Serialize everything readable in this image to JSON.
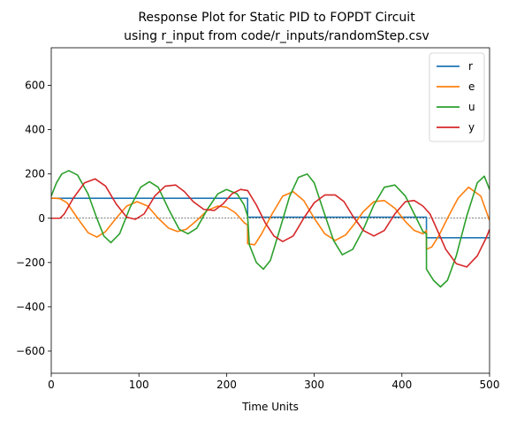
{
  "chart_data": {
    "type": "line",
    "title": "Response Plot for Static PID to FOPDT Circuit\nusing r_input from code/r_inputs/randomStep.csv",
    "xlabel": "Time Units",
    "ylabel": "",
    "xlim": [
      0,
      500
    ],
    "ylim": [
      -700,
      770
    ],
    "xticks": [
      0,
      100,
      200,
      300,
      400,
      500
    ],
    "yticks": [
      -600,
      -400,
      -200,
      0,
      200,
      400,
      600
    ],
    "zero_line": true,
    "grid": false,
    "legend_position": "top-right",
    "series": [
      {
        "name": "r",
        "color": "#1f77b4",
        "x": [
          0,
          224,
          224,
          428,
          428,
          500
        ],
        "y": [
          90,
          90,
          5,
          5,
          -88,
          -88
        ]
      },
      {
        "name": "e",
        "color": "#ff7f0e",
        "x": [
          0,
          5,
          10,
          18,
          30,
          42,
          52,
          62,
          74,
          86,
          98,
          110,
          122,
          134,
          144,
          154,
          166,
          178,
          190,
          200,
          210,
          220,
          224,
          224,
          232,
          240,
          252,
          264,
          276,
          288,
          300,
          312,
          324,
          336,
          346,
          356,
          368,
          380,
          392,
          404,
          414,
          424,
          428,
          428,
          434,
          442,
          452,
          464,
          476,
          490,
          500
        ],
        "y": [
          90,
          90,
          88,
          70,
          0,
          -65,
          -85,
          -60,
          0,
          55,
          75,
          55,
          0,
          -45,
          -60,
          -50,
          -10,
          35,
          55,
          50,
          25,
          -20,
          -30,
          -115,
          -120,
          -70,
          20,
          100,
          120,
          80,
          0,
          -70,
          -100,
          -75,
          -25,
          30,
          75,
          80,
          45,
          -15,
          -55,
          -70,
          -55,
          -140,
          -130,
          -80,
          0,
          90,
          140,
          100,
          -10
        ]
      },
      {
        "name": "u",
        "color": "#2ca02c",
        "x": [
          0,
          6,
          12,
          20,
          30,
          42,
          52,
          60,
          68,
          78,
          90,
          102,
          112,
          122,
          134,
          146,
          156,
          166,
          178,
          190,
          200,
          212,
          220,
          224,
          226,
          234,
          242,
          250,
          260,
          272,
          282,
          292,
          300,
          310,
          322,
          332,
          344,
          356,
          368,
          380,
          392,
          404,
          414,
          424,
          428,
          428,
          436,
          444,
          452,
          462,
          474,
          486,
          494,
          500
        ],
        "y": [
          100,
          160,
          200,
          215,
          195,
          110,
          0,
          -80,
          -110,
          -70,
          50,
          140,
          165,
          140,
          40,
          -50,
          -70,
          -45,
          40,
          110,
          130,
          110,
          60,
          10,
          -120,
          -200,
          -230,
          -190,
          -60,
          100,
          185,
          200,
          160,
          40,
          -100,
          -165,
          -140,
          -50,
          60,
          140,
          150,
          100,
          20,
          -60,
          -70,
          -230,
          -280,
          -310,
          -280,
          -170,
          10,
          160,
          190,
          130
        ]
      },
      {
        "name": "y",
        "color": "#d62728",
        "x": [
          0,
          10,
          15,
          25,
          38,
          50,
          62,
          74,
          86,
          96,
          106,
          118,
          130,
          142,
          152,
          162,
          174,
          186,
          196,
          206,
          216,
          224,
          234,
          244,
          254,
          264,
          276,
          288,
          300,
          312,
          324,
          334,
          344,
          356,
          368,
          380,
          392,
          404,
          414,
          424,
          432,
          440,
          450,
          462,
          474,
          486,
          496,
          500
        ],
        "y": [
          0,
          0,
          20,
          90,
          160,
          178,
          145,
          65,
          5,
          -5,
          20,
          100,
          145,
          150,
          120,
          75,
          40,
          35,
          65,
          110,
          130,
          125,
          60,
          -20,
          -80,
          -105,
          -80,
          0,
          70,
          105,
          105,
          75,
          10,
          -55,
          -80,
          -55,
          20,
          75,
          80,
          55,
          20,
          -50,
          -140,
          -205,
          -220,
          -170,
          -90,
          -50
        ]
      }
    ]
  }
}
